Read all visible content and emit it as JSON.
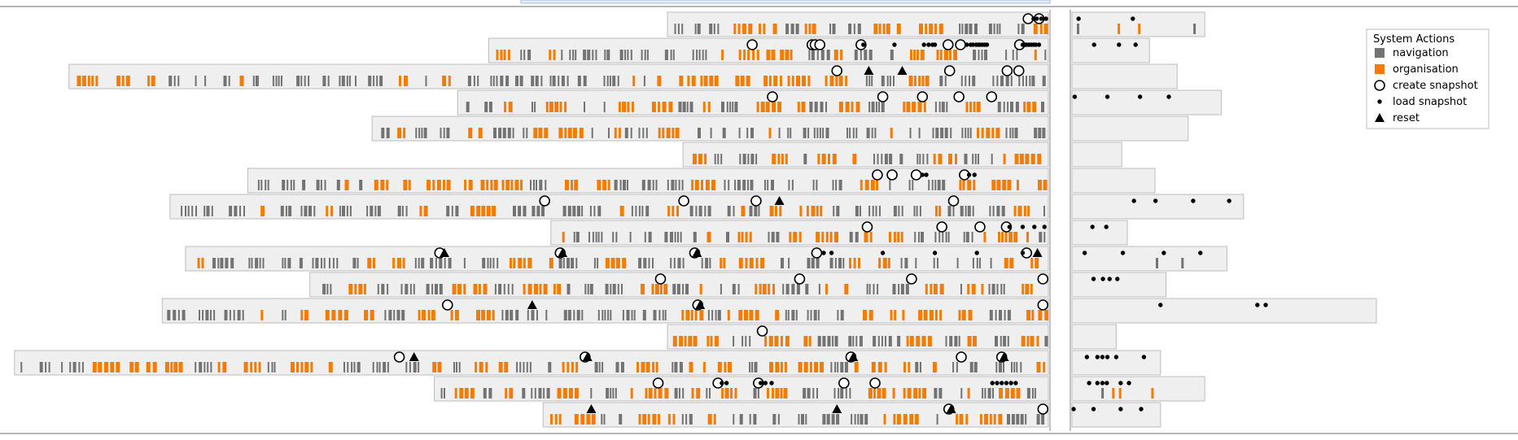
{
  "chart_data": {
    "type": "timeline",
    "legend_placement": "top-right",
    "legend": {
      "title": "System Actions",
      "items": [
        {
          "key": "navigation",
          "label": "navigation",
          "symbol": "square",
          "color": "#737373"
        },
        {
          "key": "organisation",
          "label": "organisation",
          "symbol": "square",
          "color": "#f57c00"
        },
        {
          "key": "create",
          "label": "create snapshot",
          "symbol": "circle-open",
          "color": "#000000"
        },
        {
          "key": "load",
          "label": "load snapshot",
          "symbol": "dot",
          "color": "#000000"
        },
        {
          "key": "reset",
          "label": "reset",
          "symbol": "triangle",
          "color": "#000000"
        }
      ]
    },
    "colors": {
      "navigation": "#737373",
      "organisation": "#f57c00",
      "marker": "#000000",
      "row_background": "#efefef",
      "row_border": "#bdbdbd"
    },
    "note_units": "time in minutes before end of main session (main panel, right edge = 0); minutes after end (right panel)",
    "sessions": [
      {
        "start": 49,
        "after": 24,
        "create": [
          2.6,
          1.2
        ],
        "load": [
          1.9,
          1.5,
          0.9,
          0.3
        ],
        "reset": [],
        "after_load": [
          11,
          1.2
        ]
      },
      {
        "start": 72,
        "after": 14,
        "create": [
          38.1,
          30.4,
          30.0,
          29.4,
          24.1,
          12.9,
          11.3,
          3.7
        ],
        "load": [
          23.8,
          19.8,
          16.0,
          15.4,
          14.9,
          14.6,
          10.5,
          10.0,
          9.7,
          9.3,
          9.0,
          8.8,
          8.5,
          8.2,
          7.9,
          3.3,
          3.0,
          2.8,
          2.5,
          2.2,
          1.9,
          1.6,
          1.2
        ],
        "reset": [],
        "after_load": [
          4,
          8.5,
          11.5
        ]
      },
      {
        "start": 126,
        "after": 19,
        "create": [
          27.2,
          12.7,
          5.3,
          3.8
        ],
        "load": [],
        "reset": [
          23.1,
          18.8
        ],
        "after_load": []
      },
      {
        "start": 76,
        "after": 27,
        "create": [
          35.5,
          21.3,
          16.2,
          11.5,
          7.3
        ],
        "load": [],
        "reset": [],
        "after_load": [
          0.5,
          6.4,
          12.3,
          17.5
        ]
      },
      {
        "start": 87,
        "after": 21,
        "create": [],
        "load": [],
        "reset": [],
        "after_load": []
      },
      {
        "start": 47,
        "after": 9,
        "create": [],
        "load": [],
        "reset": [],
        "after_load": []
      },
      {
        "start": 103,
        "after": 15,
        "create": [
          22.0,
          20.1,
          17.0,
          10.8
        ],
        "load": [
          16.2,
          15.7,
          10.2,
          9.5
        ],
        "reset": [],
        "after_load": []
      },
      {
        "start": 113,
        "after": 31,
        "create": [
          64.8,
          46.9,
          37.6,
          12.2
        ],
        "load": [],
        "reset": [
          34.6
        ],
        "after_load": [
          11.2,
          15.1,
          21.9,
          28.4
        ]
      },
      {
        "start": 64,
        "after": 10,
        "create": [
          23.3,
          13.7,
          8.8,
          5.4
        ],
        "load": [
          5.0,
          3.3,
          1.8,
          0.5
        ],
        "reset": [],
        "after_load": [
          3.7,
          6.2
        ]
      },
      {
        "start": 111,
        "after": 28,
        "create": [
          78.3,
          62.8,
          45.5,
          29.8,
          2.8
        ],
        "load": [
          28.9,
          27.9,
          21.3,
          14.6,
          9.2,
          3.3
        ],
        "reset": [
          77.7,
          62.5,
          45.2,
          1.4
        ],
        "after_load": [
          2.3,
          9.2,
          16.6,
          23.2
        ]
      },
      {
        "start": 95,
        "after": 17,
        "create": [
          49.9,
          32.0,
          17.6,
          0.7
        ],
        "load": [],
        "reset": [],
        "after_load": [
          3.9,
          5.6,
          6.8,
          8.2
        ]
      },
      {
        "start": 114,
        "after": 55,
        "create": [
          77.3,
          45.1,
          0.7
        ],
        "load": [],
        "reset": [
          66.4,
          44.8
        ],
        "after_load": [
          16,
          33.5,
          35
        ]
      },
      {
        "start": 49,
        "after": 8,
        "create": [
          36.8
        ],
        "load": [],
        "reset": [],
        "after_load": []
      },
      {
        "start": 133,
        "after": 16,
        "create": [
          83.5,
          59.6,
          25.4,
          11.2,
          6.0
        ],
        "load": [],
        "reset": [
          81.6,
          59.3,
          25.1,
          5.7
        ],
        "after_load": [
          2.7,
          4.6,
          5.5,
          6.4,
          8,
          13
        ]
      },
      {
        "start": 79,
        "after": 24,
        "create": [
          50.2,
          42.5,
          37.3,
          26.3,
          22.3
        ],
        "load": [
          42.0,
          41.4,
          37.0,
          36.4,
          35.6,
          7.2,
          6.6,
          6.0,
          5.4,
          4.8,
          4.2
        ],
        "reset": [],
        "after_load": [
          3.1,
          4.6,
          5.5,
          6.3,
          8.8,
          10.3
        ]
      },
      {
        "start": 65,
        "after": 16,
        "create": [
          12.8,
          0.7
        ],
        "load": [],
        "reset": [
          58.8,
          27.2,
          12.5
        ],
        "after_load": [
          0.3,
          3.9,
          8.8,
          12.5
        ]
      }
    ]
  }
}
